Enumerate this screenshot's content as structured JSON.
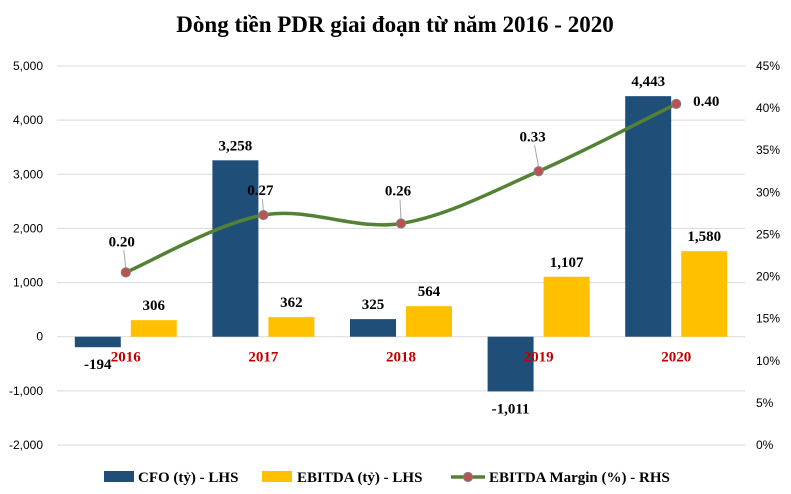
{
  "chart_data": {
    "type": "bar",
    "title": "Dòng tiền PDR giai đoạn từ năm 2016 - 2020",
    "categories": [
      "2016",
      "2017",
      "2018",
      "2019",
      "2020"
    ],
    "series": [
      {
        "name": "CFO (tỷ) - LHS",
        "type": "bar",
        "axis": "left",
        "color": "#1f4e79",
        "values": [
          -194,
          3258,
          325,
          -1011,
          4443
        ],
        "labels": [
          "-194",
          "3,258",
          "325",
          "-1,011",
          "4,443"
        ]
      },
      {
        "name": "EBITDA (tỷ) - LHS",
        "type": "bar",
        "axis": "left",
        "color": "#ffc000",
        "values": [
          306,
          362,
          564,
          1107,
          1580
        ],
        "labels": [
          "306",
          "362",
          "564",
          "1,107",
          "1,580"
        ]
      },
      {
        "name": "EBITDA Margin (%) - RHS",
        "type": "line",
        "axis": "right",
        "color": "#548235",
        "marker_color": "#c0504d",
        "values": [
          0.205,
          0.273,
          0.263,
          0.325,
          0.405
        ],
        "labels": [
          "0.20",
          "0.27",
          "0.26",
          "0.33",
          "0.40"
        ]
      }
    ],
    "y_left": {
      "lim": [
        -2000,
        5000
      ],
      "ticks": [
        5000,
        4000,
        3000,
        2000,
        1000,
        0,
        -1000,
        -2000
      ],
      "tick_labels": [
        "5,000",
        "4,000",
        "3,000",
        "2,000",
        "1,000",
        "0",
        "-1,000",
        "-2,000"
      ]
    },
    "y_right": {
      "lim": [
        0,
        0.45
      ],
      "ticks": [
        0.45,
        0.4,
        0.35,
        0.3,
        0.25,
        0.2,
        0.15,
        0.1,
        0.05,
        0
      ],
      "tick_labels": [
        "45%",
        "40%",
        "35%",
        "30%",
        "25%",
        "20%",
        "15%",
        "10%",
        "5%",
        "0%"
      ]
    },
    "grid": true,
    "legend_position": "bottom"
  }
}
